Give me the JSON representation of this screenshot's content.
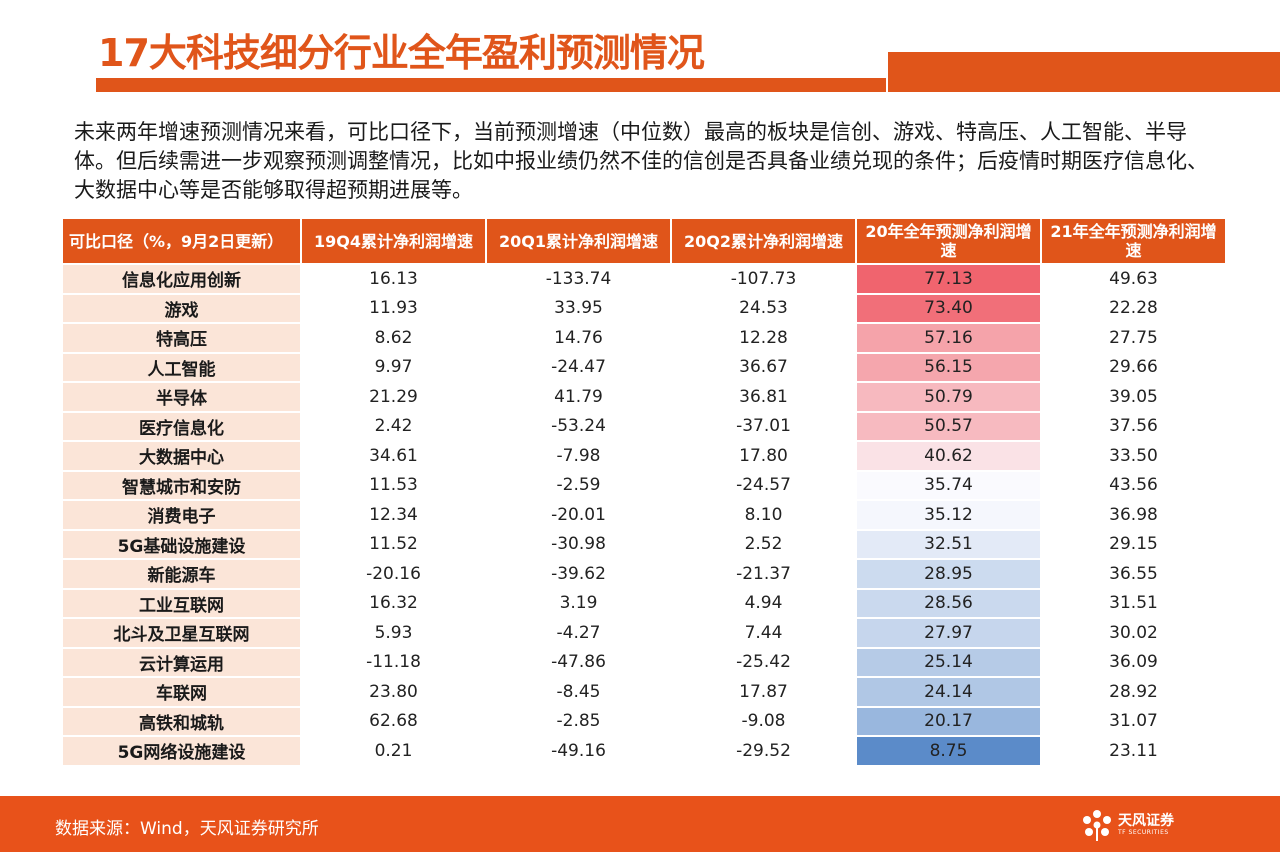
{
  "title": "17大科技细分行业全年盈利预测情况",
  "intro": "未来两年增速预测情况来看，可比口径下，当前预测增速（中位数）最高的板块是信创、游戏、特高压、人工智能、半导体。但后续需进一步观察预测调整情况，比如中报业绩仍然不佳的信创是否具备业绩兑现的条件；后疫情时期医疗信息化、大数据中心等是否能够取得超预期进展等。",
  "table": {
    "headers": [
      "可比口径（%，9月2日更新）",
      "19Q4累计净利润增速",
      "20Q1累计净利润增速",
      "20Q2累计净利润增速",
      "20年全年预测净利润增速",
      "21年全年预测净利润增速"
    ],
    "rows": [
      {
        "name": "信息化应用创新",
        "q4_19": "16.13",
        "q1_20": "-133.74",
        "q2_20": "-107.73",
        "fy20": "77.13",
        "fy21": "49.63"
      },
      {
        "name": "游戏",
        "q4_19": "11.93",
        "q1_20": "33.95",
        "q2_20": "24.53",
        "fy20": "73.40",
        "fy21": "22.28"
      },
      {
        "name": "特高压",
        "q4_19": "8.62",
        "q1_20": "14.76",
        "q2_20": "12.28",
        "fy20": "57.16",
        "fy21": "27.75"
      },
      {
        "name": "人工智能",
        "q4_19": "9.97",
        "q1_20": "-24.47",
        "q2_20": "36.67",
        "fy20": "56.15",
        "fy21": "29.66"
      },
      {
        "name": "半导体",
        "q4_19": "21.29",
        "q1_20": "41.79",
        "q2_20": "36.81",
        "fy20": "50.79",
        "fy21": "39.05"
      },
      {
        "name": "医疗信息化",
        "q4_19": "2.42",
        "q1_20": "-53.24",
        "q2_20": "-37.01",
        "fy20": "50.57",
        "fy21": "37.56"
      },
      {
        "name": "大数据中心",
        "q4_19": "34.61",
        "q1_20": "-7.98",
        "q2_20": "17.80",
        "fy20": "40.62",
        "fy21": "33.50"
      },
      {
        "name": "智慧城市和安防",
        "q4_19": "11.53",
        "q1_20": "-2.59",
        "q2_20": "-24.57",
        "fy20": "35.74",
        "fy21": "43.56"
      },
      {
        "name": "消费电子",
        "q4_19": "12.34",
        "q1_20": "-20.01",
        "q2_20": "8.10",
        "fy20": "35.12",
        "fy21": "36.98"
      },
      {
        "name": "5G基础设施建设",
        "q4_19": "11.52",
        "q1_20": "-30.98",
        "q2_20": "2.52",
        "fy20": "32.51",
        "fy21": "29.15"
      },
      {
        "name": "新能源车",
        "q4_19": "-20.16",
        "q1_20": "-39.62",
        "q2_20": "-21.37",
        "fy20": "28.95",
        "fy21": "36.55"
      },
      {
        "name": "工业互联网",
        "q4_19": "16.32",
        "q1_20": "3.19",
        "q2_20": "4.94",
        "fy20": "28.56",
        "fy21": "31.51"
      },
      {
        "name": "北斗及卫星互联网",
        "q4_19": "5.93",
        "q1_20": "-4.27",
        "q2_20": "7.44",
        "fy20": "27.97",
        "fy21": "30.02"
      },
      {
        "name": "云计算运用",
        "q4_19": "-11.18",
        "q1_20": "-47.86",
        "q2_20": "-25.42",
        "fy20": "25.14",
        "fy21": "36.09"
      },
      {
        "name": "车联网",
        "q4_19": "23.80",
        "q1_20": "-8.45",
        "q2_20": "17.87",
        "fy20": "24.14",
        "fy21": "28.92"
      },
      {
        "name": "高铁和城轨",
        "q4_19": "62.68",
        "q1_20": "-2.85",
        "q2_20": "-9.08",
        "fy20": "20.17",
        "fy21": "31.07"
      },
      {
        "name": "5G网络设施建设",
        "q4_19": "0.21",
        "q1_20": "-49.16",
        "q2_20": "-29.52",
        "fy20": "8.75",
        "fy21": "23.11"
      }
    ]
  },
  "colors": {
    "accent": "#e0551a",
    "row_label_bg": "#fbe5d8",
    "heat_high": "#f0646e",
    "heat_mid": "#fcfcff",
    "heat_low": "#5b8bc9"
  },
  "source": "数据来源：Wind，天风证券研究所",
  "logo": {
    "cn": "天风证券",
    "en": "TF SECURITIES"
  }
}
